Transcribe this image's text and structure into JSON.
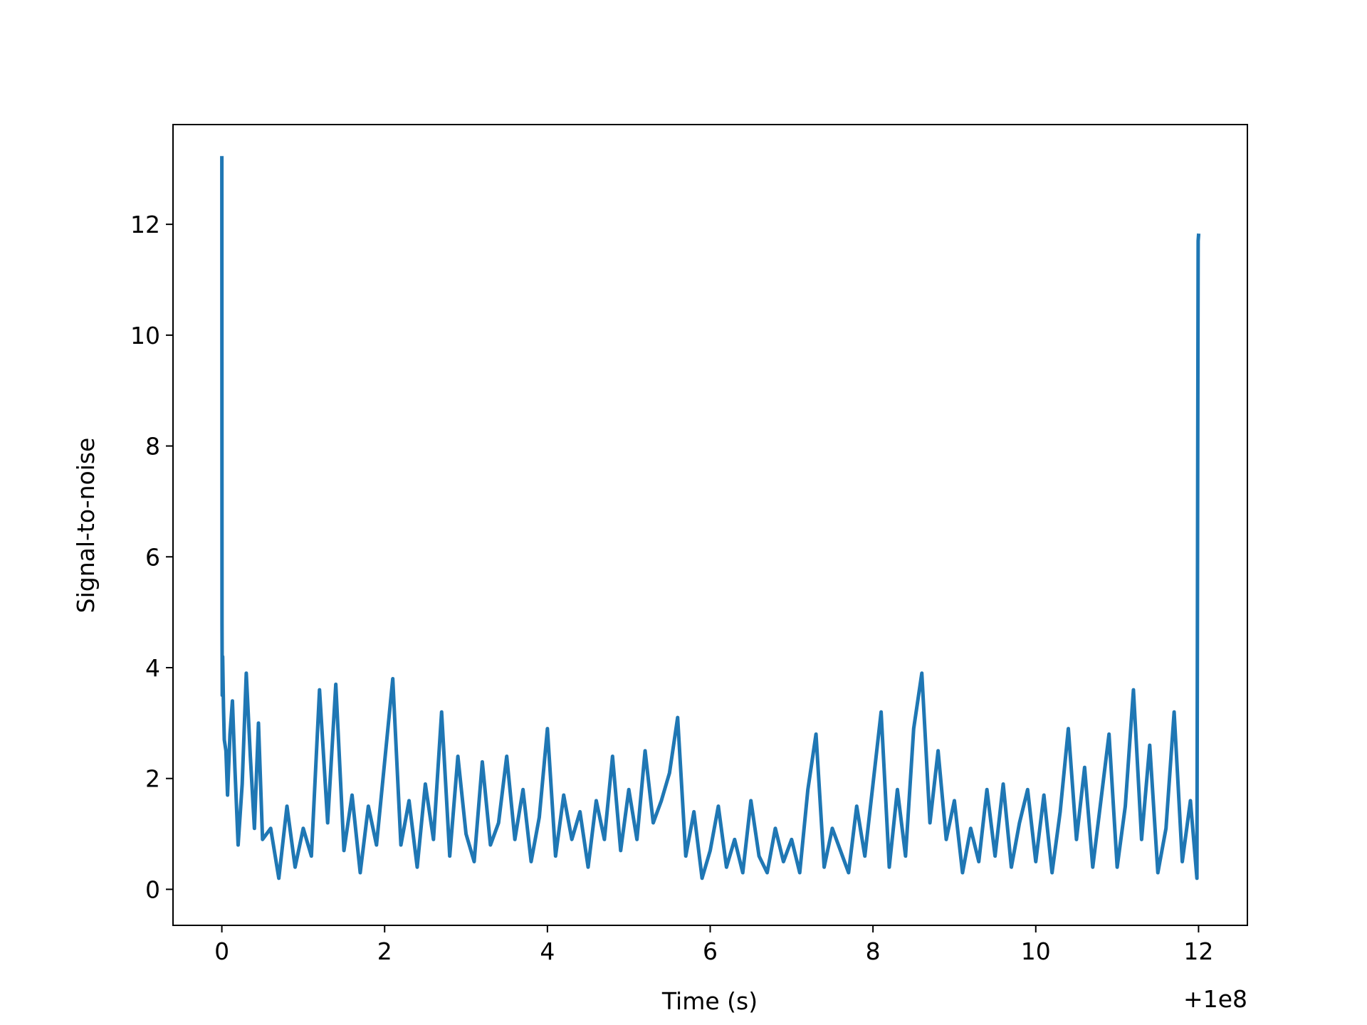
{
  "chart_data": {
    "type": "line",
    "title": "",
    "xlabel": "Time (s)",
    "ylabel": "Signal-to-noise",
    "x_offset_label": "+1e8",
    "xlim": [
      -0.6,
      12.6
    ],
    "ylim": [
      -0.65,
      13.8
    ],
    "x_ticks": [
      0,
      2,
      4,
      6,
      8,
      10,
      12
    ],
    "y_ticks": [
      0,
      2,
      4,
      6,
      8,
      10,
      12
    ],
    "grid": false,
    "line_color": "#1f77b4",
    "series": [
      {
        "x": [
          0.0,
          0.002,
          0.005,
          0.01,
          0.02,
          0.03,
          0.05,
          0.07,
          0.1,
          0.13,
          0.16,
          0.2,
          0.25,
          0.3,
          0.35,
          0.4,
          0.45,
          0.5,
          0.6,
          0.7,
          0.8,
          0.9,
          1.0,
          1.1,
          1.2,
          1.3,
          1.4,
          1.5,
          1.6,
          1.7,
          1.8,
          1.9,
          2.0,
          2.1,
          2.2,
          2.3,
          2.4,
          2.5,
          2.6,
          2.7,
          2.8,
          2.9,
          3.0,
          3.1,
          3.2,
          3.3,
          3.4,
          3.5,
          3.6,
          3.7,
          3.8,
          3.9,
          4.0,
          4.1,
          4.2,
          4.3,
          4.4,
          4.5,
          4.6,
          4.7,
          4.8,
          4.9,
          5.0,
          5.1,
          5.2,
          5.3,
          5.4,
          5.5,
          5.6,
          5.7,
          5.8,
          5.9,
          6.0,
          6.1,
          6.2,
          6.3,
          6.4,
          6.5,
          6.6,
          6.7,
          6.8,
          6.9,
          7.0,
          7.1,
          7.2,
          7.3,
          7.4,
          7.5,
          7.6,
          7.7,
          7.8,
          7.9,
          8.0,
          8.1,
          8.2,
          8.3,
          8.4,
          8.5,
          8.6,
          8.7,
          8.8,
          8.9,
          9.0,
          9.1,
          9.2,
          9.3,
          9.4,
          9.5,
          9.6,
          9.7,
          9.8,
          9.9,
          10.0,
          10.1,
          10.2,
          10.3,
          10.4,
          10.5,
          10.6,
          10.7,
          10.8,
          10.9,
          11.0,
          11.1,
          11.2,
          11.3,
          11.4,
          11.5,
          11.6,
          11.7,
          11.8,
          11.9,
          11.98,
          11.995,
          12.0
        ],
        "y": [
          13.2,
          4.8,
          3.5,
          4.2,
          3.3,
          2.7,
          2.5,
          1.7,
          2.8,
          3.4,
          2.2,
          0.8,
          1.9,
          3.9,
          2.4,
          1.1,
          3.0,
          0.9,
          1.1,
          0.2,
          1.5,
          0.4,
          1.1,
          0.6,
          3.6,
          1.2,
          3.7,
          0.7,
          1.7,
          0.3,
          1.5,
          0.8,
          2.3,
          3.8,
          0.8,
          1.6,
          0.4,
          1.9,
          0.9,
          3.2,
          0.6,
          2.4,
          1.0,
          0.5,
          2.3,
          0.8,
          1.2,
          2.4,
          0.9,
          1.8,
          0.5,
          1.3,
          2.9,
          0.6,
          1.7,
          0.9,
          1.4,
          0.4,
          1.6,
          0.9,
          2.4,
          0.7,
          1.8,
          0.9,
          2.5,
          1.2,
          1.6,
          2.1,
          3.1,
          0.6,
          1.4,
          0.2,
          0.7,
          1.5,
          0.4,
          0.9,
          0.3,
          1.6,
          0.6,
          0.3,
          1.1,
          0.5,
          0.9,
          0.3,
          1.8,
          2.8,
          0.4,
          1.1,
          0.7,
          0.3,
          1.5,
          0.6,
          1.9,
          3.2,
          0.4,
          1.8,
          0.6,
          2.9,
          3.9,
          1.2,
          2.5,
          0.9,
          1.6,
          0.3,
          1.1,
          0.5,
          1.8,
          0.6,
          1.9,
          0.4,
          1.2,
          1.8,
          0.5,
          1.7,
          0.3,
          1.4,
          2.9,
          0.9,
          2.2,
          0.4,
          1.6,
          2.8,
          0.4,
          1.5,
          3.6,
          0.9,
          2.6,
          0.3,
          1.1,
          3.2,
          0.5,
          1.6,
          0.2,
          11.7,
          11.8
        ]
      }
    ]
  }
}
